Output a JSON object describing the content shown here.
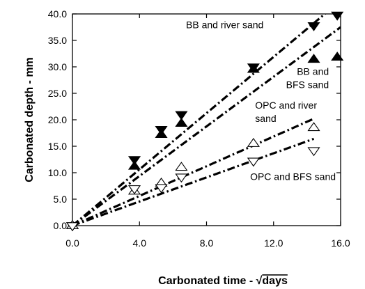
{
  "chart_data": {
    "type": "scatter",
    "title": "",
    "xlabel_prefix": "Carbonated time - ",
    "xlabel_radical": "√",
    "xlabel_unit": "days",
    "ylabel": "Carbonated depth - mm",
    "xlim": [
      0,
      16
    ],
    "ylim": [
      0,
      40
    ],
    "x_ticks": [
      0,
      4,
      8,
      12,
      16
    ],
    "x_tick_labels": [
      "0.0",
      "4.0",
      "8.0",
      "12.0",
      "16.0"
    ],
    "y_ticks": [
      0,
      5,
      10,
      15,
      20,
      25,
      30,
      35,
      40
    ],
    "y_tick_labels": [
      "0.0",
      "5.0",
      "10.0",
      "15.0",
      "20.0",
      "25.0",
      "30.0",
      "35.0",
      "40.0"
    ],
    "grid": false,
    "legend": "none",
    "series": [
      {
        "marker": "triangle-down-filled",
        "color": "#000000",
        "points": [
          [
            0,
            0
          ],
          [
            3.7,
            12.5
          ],
          [
            5.3,
            18.2
          ],
          [
            6.5,
            21.0
          ],
          [
            10.8,
            30.0
          ],
          [
            14.4,
            37.8
          ],
          [
            15.8,
            39.8
          ]
        ],
        "fit_line": {
          "x": [
            0,
            16
          ],
          "y": [
            0,
            42.5
          ]
        }
      },
      {
        "marker": "triangle-up-filled",
        "color": "#000000",
        "points": [
          [
            0,
            0
          ],
          [
            3.7,
            11.2
          ],
          [
            5.3,
            17.2
          ],
          [
            6.5,
            19.3
          ],
          [
            10.8,
            29.5
          ],
          [
            14.4,
            31.4
          ],
          [
            15.8,
            31.8
          ]
        ],
        "fit_line": {
          "x": [
            0,
            16
          ],
          "y": [
            0,
            37.5
          ]
        }
      },
      {
        "marker": "triangle-up-open",
        "color": "#000000",
        "points": [
          [
            0,
            0
          ],
          [
            3.7,
            6.5
          ],
          [
            5.3,
            8.0
          ],
          [
            6.5,
            11.0
          ],
          [
            10.8,
            15.5
          ],
          [
            14.4,
            18.5
          ]
        ],
        "fit_line": {
          "x": [
            0,
            14.4
          ],
          "y": [
            0,
            20.2
          ]
        }
      },
      {
        "marker": "triangle-down-open",
        "color": "#000000",
        "points": [
          [
            0,
            0
          ],
          [
            3.7,
            7.0
          ],
          [
            5.3,
            7.2
          ],
          [
            6.5,
            9.2
          ],
          [
            10.8,
            12.2
          ],
          [
            14.4,
            14.2
          ]
        ],
        "fit_line": {
          "x": [
            0,
            14.4
          ],
          "y": [
            0,
            16.4
          ]
        }
      }
    ],
    "annotations": [
      {
        "lines": [
          "BB and river sand"
        ],
        "x": 11.4,
        "y": 37.3,
        "anchor": "end"
      },
      {
        "lines": [
          "BB and",
          "BFS sand"
        ],
        "x": 15.3,
        "y": 28.5,
        "anchor": "end"
      },
      {
        "lines": [
          "OPC and river",
          "sand"
        ],
        "x": 10.9,
        "y": 22.1,
        "anchor": "start"
      },
      {
        "lines": [
          "OPC and BFS sand"
        ],
        "x": 10.6,
        "y": 8.6,
        "anchor": "start"
      }
    ]
  }
}
